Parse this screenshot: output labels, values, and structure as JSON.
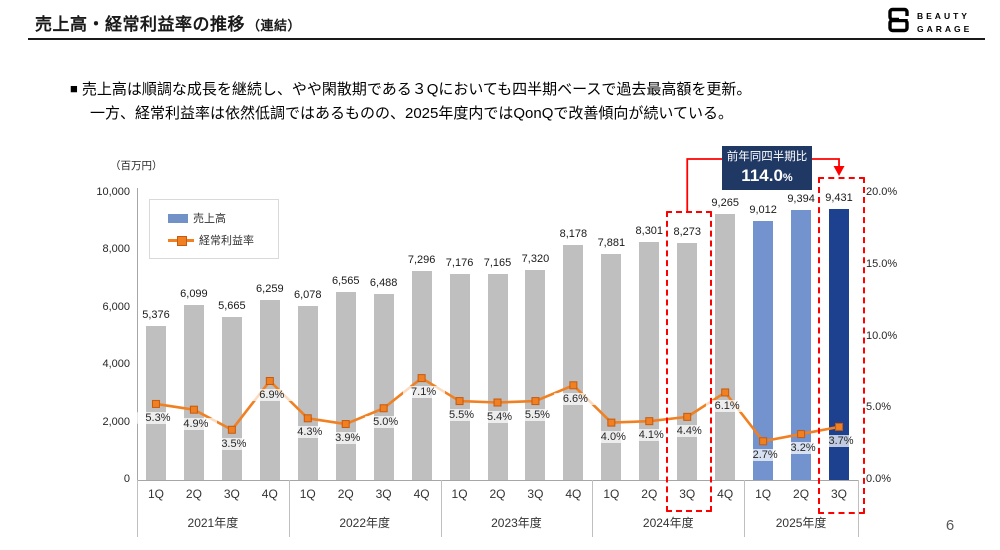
{
  "header": {
    "title": "売上高・経常利益率の推移",
    "title_suffix": "（連結）",
    "logo_line1": "BEAUTY",
    "logo_line2": "GARAGE"
  },
  "summary": {
    "bullet": "■",
    "line1": "売上高は順調な成長を継続し、やや閑散期である３Qにおいても四半期ベースで過去最高額を更新。",
    "line2": "一方、経常利益率は依然低調ではあるものの、2025年度内ではQonQで改善傾向が続いている。"
  },
  "chart_data": {
    "type": "bar+line",
    "unit_label": "（百万円）",
    "legend_position": "top-left",
    "grid": false,
    "years": [
      {
        "label": "2021年度",
        "quarters": [
          "1Q",
          "2Q",
          "3Q",
          "4Q"
        ]
      },
      {
        "label": "2022年度",
        "quarters": [
          "1Q",
          "2Q",
          "3Q",
          "4Q"
        ]
      },
      {
        "label": "2023年度",
        "quarters": [
          "1Q",
          "2Q",
          "3Q",
          "4Q"
        ]
      },
      {
        "label": "2024年度",
        "quarters": [
          "1Q",
          "2Q",
          "3Q",
          "4Q"
        ]
      },
      {
        "label": "2025年度",
        "quarters": [
          "1Q",
          "2Q",
          "3Q"
        ]
      }
    ],
    "series": [
      {
        "name": "売上高",
        "type": "bar",
        "values": [
          5376,
          6099,
          5665,
          6259,
          6078,
          6565,
          6488,
          7296,
          7176,
          7165,
          7320,
          8178,
          7881,
          8301,
          8273,
          9265,
          9012,
          9394,
          9431
        ]
      },
      {
        "name": "経常利益率",
        "type": "line",
        "values": [
          5.3,
          4.9,
          3.5,
          6.9,
          4.3,
          3.9,
          5.0,
          7.1,
          5.5,
          5.4,
          5.5,
          6.6,
          4.0,
          4.1,
          4.4,
          6.1,
          2.7,
          3.2,
          3.7
        ]
      }
    ],
    "left_axis": {
      "ticks": [
        10000,
        8000,
        6000,
        4000,
        2000,
        0
      ],
      "max": 10000
    },
    "right_axis": {
      "ticks": [
        20,
        15,
        10,
        5,
        0
      ],
      "max": 20
    },
    "bar_styles": [
      "default",
      "default",
      "default",
      "default",
      "default",
      "default",
      "default",
      "default",
      "default",
      "default",
      "default",
      "default",
      "default",
      "default",
      "default",
      "default",
      "current_year",
      "current_year",
      "current_quarter"
    ],
    "colors": {
      "bar_default": "#bfbfbf",
      "bar_current_year": "#7293cd",
      "bar_current_quarter": "#1e418f",
      "line": "#f08021",
      "marker_border": "#c55a11",
      "highlight_red": "#ff0000",
      "callout_bg": "#1f3864",
      "legend_bar": "#7191c7",
      "axis_line": "#a6a6a6",
      "separator": "#bfbfbf"
    },
    "highlight": {
      "label": "前年同四半期比",
      "value": "114.0",
      "unit": "%",
      "from_index": 14,
      "to_index": 18
    }
  },
  "page": {
    "number": "6"
  }
}
